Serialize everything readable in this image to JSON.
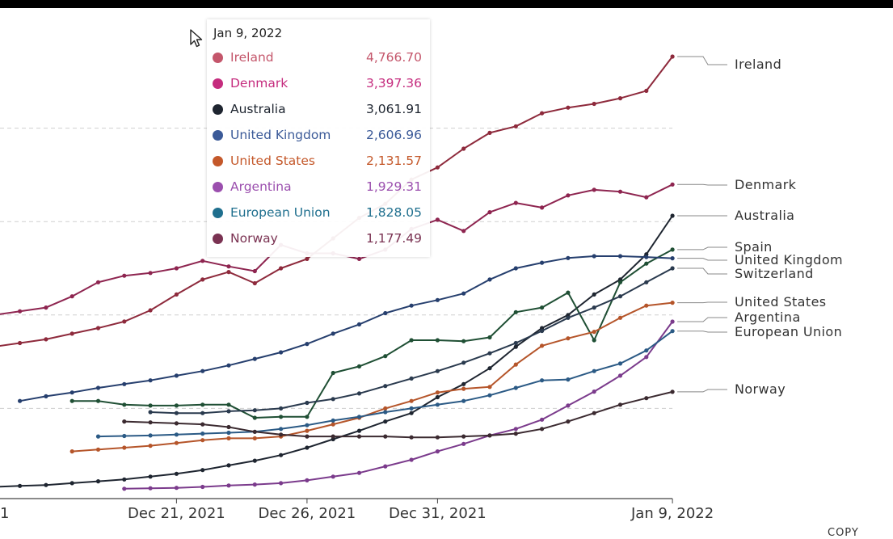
{
  "chart_data": {
    "type": "line",
    "title": "",
    "xlabel": "",
    "ylabel": "",
    "x_ticks": [
      "Dec 21, 2021",
      "Dec 26, 2021",
      "Dec 31, 2021",
      "Jan 9, 2022"
    ],
    "x_first_date": "2021-12-13",
    "x_last_date": "2022-01-09",
    "x_tick_partial_left": "1",
    "ylim": [
      0,
      5200
    ],
    "grid_y": [
      1000,
      2000,
      3000,
      4000
    ],
    "legend": "right-end labels",
    "series": [
      {
        "name": "Ireland",
        "color": "#8e2a3c",
        "end_value": 4766.7,
        "values": [
          1600,
          1660,
          1700,
          1740,
          1800,
          1860,
          1930,
          2050,
          2220,
          2380,
          2460,
          2340,
          2500,
          2600,
          2820,
          3040,
          3190,
          3450,
          3580,
          3780,
          3950,
          4020,
          4160,
          4220,
          4260,
          4320,
          4400,
          4766.7
        ]
      },
      {
        "name": "Denmark",
        "color": "#8e2550",
        "end_value": 3397.36,
        "values": [
          1960,
          2000,
          2040,
          2080,
          2200,
          2350,
          2420,
          2450,
          2500,
          2580,
          2520,
          2470,
          2750,
          2660,
          2660,
          2600,
          2700,
          2920,
          3020,
          2900,
          3100,
          3200,
          3150,
          3280,
          3340,
          3320,
          3260,
          3397.36
        ]
      },
      {
        "name": "Australia",
        "color": "#1e2530",
        "end_value": 3061.91,
        "values": [
          150,
          160,
          170,
          180,
          200,
          220,
          240,
          270,
          300,
          340,
          390,
          440,
          500,
          580,
          670,
          760,
          860,
          950,
          1120,
          1260,
          1430,
          1660,
          1860,
          2000,
          2220,
          2380,
          2650,
          3061.91
        ]
      },
      {
        "name": "Spain",
        "color": "#1f4f34",
        "end_value": 2700,
        "values": [
          1080,
          1080,
          1040,
          1030,
          1030,
          1040,
          1040,
          900,
          910,
          910,
          1380,
          1450,
          1560,
          1730,
          1730,
          1720,
          1760,
          2030,
          2080,
          2240,
          1730,
          2350,
          2550,
          2700
        ]
      },
      {
        "name": "United Kingdom",
        "color": "#263f6e",
        "end_value": 2606.96,
        "values": [
          1080,
          1130,
          1170,
          1220,
          1260,
          1300,
          1350,
          1400,
          1460,
          1530,
          1600,
          1690,
          1800,
          1900,
          2020,
          2100,
          2160,
          2230,
          2380,
          2500,
          2560,
          2610,
          2630,
          2630,
          2620,
          2606.96
        ]
      },
      {
        "name": "Switzerland",
        "color": "#2a3a4e",
        "end_value": 2500,
        "values": [
          960,
          950,
          950,
          970,
          980,
          1000,
          1060,
          1100,
          1160,
          1240,
          1320,
          1400,
          1490,
          1590,
          1700,
          1830,
          1970,
          2080,
          2200,
          2350,
          2500
        ]
      },
      {
        "name": "United States",
        "color": "#b5552a",
        "end_value": 2131.57,
        "values": [
          540,
          560,
          580,
          600,
          630,
          660,
          680,
          680,
          700,
          760,
          830,
          900,
          1000,
          1080,
          1170,
          1210,
          1230,
          1470,
          1670,
          1750,
          1820,
          1970,
          2100,
          2131.57
        ]
      },
      {
        "name": "Argentina",
        "color": "#7b3b8c",
        "end_value": 1929.31,
        "values": [
          140,
          145,
          150,
          160,
          175,
          185,
          200,
          230,
          270,
          310,
          380,
          450,
          540,
          620,
          710,
          780,
          880,
          1030,
          1180,
          1350,
          1550,
          1929.31
        ]
      },
      {
        "name": "European Union",
        "color": "#2b5a85",
        "end_value": 1828.05,
        "values": [
          700,
          705,
          710,
          720,
          730,
          740,
          750,
          780,
          820,
          870,
          910,
          960,
          1000,
          1040,
          1080,
          1140,
          1220,
          1300,
          1310,
          1400,
          1480,
          1620,
          1828.05
        ]
      },
      {
        "name": "Norway",
        "color": "#3b2a30",
        "end_value": 1177.49,
        "values": [
          860,
          850,
          840,
          830,
          800,
          750,
          720,
          700,
          700,
          700,
          700,
          690,
          690,
          700,
          710,
          730,
          780,
          860,
          950,
          1040,
          1110,
          1177.49
        ]
      }
    ]
  },
  "right_labels": [
    {
      "name": "Ireland",
      "label": "Ireland"
    },
    {
      "name": "Denmark",
      "label": "Denmark"
    },
    {
      "name": "Australia",
      "label": "Australia"
    },
    {
      "name": "Spain",
      "label": "Spain"
    },
    {
      "name": "United Kingdom",
      "label": "United Kingdom"
    },
    {
      "name": "Switzerland",
      "label": "Switzerland"
    },
    {
      "name": "United States",
      "label": "United States"
    },
    {
      "name": "Argentina",
      "label": "Argentina"
    },
    {
      "name": "European Union",
      "label": "European Union"
    },
    {
      "name": "Norway",
      "label": "Norway"
    }
  ],
  "tooltip": {
    "date": "Jan 9, 2022",
    "rows": [
      {
        "name": "Ireland",
        "value": "4,766.70",
        "color": "#c4566b"
      },
      {
        "name": "Denmark",
        "value": "3,397.36",
        "color": "#c52c7e"
      },
      {
        "name": "Australia",
        "value": "3,061.91",
        "color": "#1e2530"
      },
      {
        "name": "United Kingdom",
        "value": "2,606.96",
        "color": "#3b5a98"
      },
      {
        "name": "United States",
        "value": "2,131.57",
        "color": "#c4582a"
      },
      {
        "name": "Argentina",
        "value": "1,929.31",
        "color": "#9b4fae"
      },
      {
        "name": "European Union",
        "value": "1,828.05",
        "color": "#1f6f8e"
      },
      {
        "name": "Norway",
        "value": "1,177.49",
        "color": "#7a3252"
      }
    ]
  },
  "footer": {
    "copy_label": "COPY"
  }
}
